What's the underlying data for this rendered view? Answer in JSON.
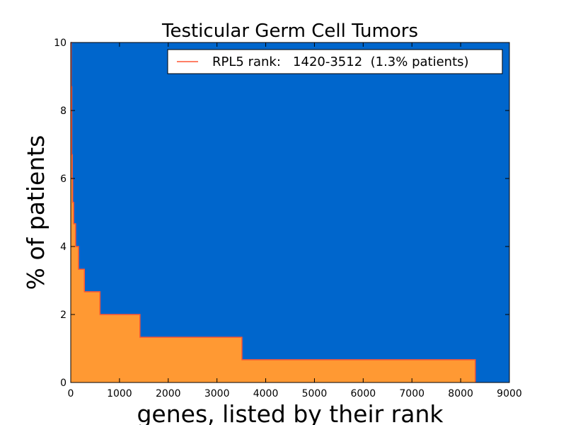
{
  "chart_data": {
    "type": "area",
    "title": "Testicular Germ Cell Tumors",
    "xlabel": "genes, listed by their rank",
    "ylabel": "% of patients",
    "xlim": [
      0,
      9000
    ],
    "ylim": [
      0,
      10
    ],
    "xticks": [
      0,
      1000,
      2000,
      3000,
      4000,
      5000,
      6000,
      7000,
      8000,
      9000
    ],
    "yticks": [
      0,
      2,
      4,
      6,
      8,
      10
    ],
    "grid": false,
    "legend_position": "top-right",
    "colors": {
      "background": "#0066CC",
      "fill": "#FF9933",
      "line": "#FF5533"
    },
    "series": [
      {
        "name": "RPL5 rank:   1420-3512  (1.3% patients)",
        "x": [
          0,
          10,
          20,
          30,
          40,
          60,
          100,
          160,
          280,
          600,
          1420,
          3512,
          8300,
          8300
        ],
        "y": [
          10,
          8.7,
          6.7,
          6.0,
          5.3,
          4.67,
          4.0,
          3.33,
          2.67,
          2.0,
          1.33,
          0.67,
          0.67,
          0
        ]
      }
    ]
  }
}
